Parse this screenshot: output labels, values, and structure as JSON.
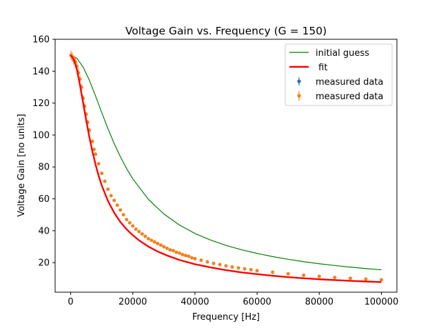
{
  "chart_data": {
    "type": "line",
    "title": "Voltage Gain vs. Frequency (G = 150)",
    "xlabel": "Frequency [Hz]",
    "ylabel": "Voltage Gain [no units]",
    "xlim": [
      -5000,
      105000
    ],
    "ylim": [
      1.5,
      160
    ],
    "xticks": [
      0,
      20000,
      40000,
      60000,
      80000,
      100000
    ],
    "xtick_labels": [
      "0",
      "20000",
      "40000",
      "60000",
      "80000",
      "100000"
    ],
    "yticks": [
      20,
      40,
      60,
      80,
      100,
      120,
      140,
      160
    ],
    "ytick_labels": [
      "20",
      "40",
      "60",
      "80",
      "100",
      "120",
      "140",
      "160"
    ],
    "grid": false,
    "legend_position": "top-right",
    "colors": {
      "initial_guess": "#008000",
      "fit": "#ff0000",
      "measured_1": "#1f77b4",
      "measured_2": "#ff7f0e"
    },
    "series": [
      {
        "name": "initial guess",
        "kind": "line",
        "x": [
          0,
          2000,
          4000,
          6000,
          8000,
          10000,
          12000,
          14000,
          16000,
          18000,
          20000,
          25000,
          30000,
          35000,
          40000,
          45000,
          50000,
          55000,
          60000,
          65000,
          70000,
          75000,
          80000,
          85000,
          90000,
          95000,
          100000
        ],
        "values": [
          150,
          148.1,
          142.6,
          134.4,
          124.5,
          114.1,
          104,
          94.7,
          86.4,
          79,
          72.5,
          59.7,
          50.5,
          43.6,
          38.3,
          34.2,
          30.8,
          28.1,
          25.8,
          23.8,
          22.1,
          20.6,
          19.3,
          18.2,
          17.2,
          16.3,
          15.5
        ]
      },
      {
        "name": " fit",
        "kind": "line",
        "x": [
          0,
          1000,
          2000,
          3000,
          4000,
          5000,
          6000,
          7000,
          8000,
          9000,
          10000,
          12000,
          14000,
          16000,
          18000,
          20000,
          22000,
          25000,
          28000,
          31000,
          35000,
          40000,
          45000,
          50000,
          55000,
          60000,
          65000,
          70000,
          75000,
          80000,
          85000,
          90000,
          95000,
          100000
        ],
        "values": [
          150,
          147.6,
          141,
          131.3,
          120.3,
          109.2,
          98.9,
          89.7,
          81.6,
          74.5,
          68.4,
          58.7,
          51.3,
          45.5,
          40.9,
          37.2,
          34.0,
          30.1,
          27.0,
          24.5,
          21.7,
          19.0,
          17.0,
          15.3,
          13.9,
          12.8,
          11.8,
          10.9,
          10.2,
          9.6,
          9.1,
          8.6,
          8.2,
          7.8
        ]
      },
      {
        "name": "measured data",
        "kind": "errorbar",
        "x": [
          100,
          500,
          1000,
          1500,
          2000,
          2500,
          3000,
          3500,
          4000,
          4500,
          5000,
          5500,
          6000,
          7000,
          7500,
          8000,
          9000,
          10000,
          11000,
          12000,
          13000,
          14000,
          15000,
          16000,
          17000,
          18000,
          19000,
          20000,
          21000,
          22000,
          23000,
          24000,
          25000,
          26000,
          27000,
          28000,
          29000,
          30000,
          31000,
          32000,
          33000,
          34000,
          35000,
          36000,
          37000,
          38000,
          39000,
          40000,
          42000,
          44000,
          46000,
          48000,
          50000,
          52000,
          54000,
          56000,
          58000,
          60000,
          65000,
          70000,
          75000,
          80000,
          85000,
          90000,
          95000,
          100000
        ],
        "values": [
          150,
          149,
          147,
          146,
          143,
          139,
          135,
          130,
          123,
          118,
          113,
          108,
          103,
          96,
          91,
          88,
          82,
          76,
          71,
          66,
          62,
          59,
          56,
          53,
          50,
          47,
          45,
          43,
          41,
          39.5,
          38,
          36.5,
          35,
          34,
          33,
          32,
          31,
          30,
          29,
          28,
          27.5,
          26.5,
          26,
          25,
          24.5,
          24,
          23,
          22.5,
          21.5,
          20.5,
          19.5,
          18.8,
          18,
          17.3,
          16.7,
          16.1,
          15.6,
          15,
          14,
          13,
          12.1,
          11.4,
          10.7,
          10.2,
          9.7,
          9.2
        ],
        "error": [
          2,
          2,
          2,
          2,
          2,
          2,
          1.5,
          1.5,
          1.5,
          1.5,
          1.2,
          1.2,
          1.2,
          1,
          1,
          1,
          1,
          0.8,
          0.8,
          0.8,
          0.7,
          0.7,
          0.6,
          0.6,
          0.6,
          0.5,
          0.5,
          0.5,
          0.5,
          0.5,
          0.4,
          0.4,
          0.4,
          0.4,
          0.4,
          0.4,
          0.3,
          0.3,
          0.3,
          0.3,
          0.3,
          0.3,
          0.3,
          0.3,
          0.3,
          0.3,
          0.3,
          0.3,
          0.3,
          0.3,
          0.3,
          0.3,
          0.3,
          0.3,
          0.3,
          0.3,
          0.3,
          0.3,
          0.3,
          0.3,
          0.3,
          0.3,
          0.3,
          0.3,
          0.3,
          0.3
        ]
      },
      {
        "name": "measured data",
        "kind": "errorbar",
        "x": [
          100,
          500,
          1000,
          1500,
          2000,
          2500,
          3000,
          3500,
          4000,
          4500,
          5000,
          5500,
          6000,
          7000,
          7500,
          8000,
          9000,
          10000,
          11000,
          12000,
          13000,
          14000,
          15000,
          16000,
          17000,
          18000,
          19000,
          20000,
          21000,
          22000,
          23000,
          24000,
          25000,
          26000,
          27000,
          28000,
          29000,
          30000,
          31000,
          32000,
          33000,
          34000,
          35000,
          36000,
          37000,
          38000,
          39000,
          40000,
          42000,
          44000,
          46000,
          48000,
          50000,
          52000,
          54000,
          56000,
          58000,
          60000,
          65000,
          70000,
          75000,
          80000,
          85000,
          90000,
          95000,
          100000
        ],
        "values": [
          150,
          149,
          147,
          146,
          143,
          139,
          135,
          130,
          123,
          118,
          113,
          108,
          103,
          96,
          91,
          88,
          82,
          76,
          71,
          66,
          62,
          59,
          56,
          53,
          50,
          47,
          45,
          43,
          41,
          39.5,
          38,
          36.5,
          35,
          34,
          33,
          32,
          31,
          30,
          29,
          28,
          27.5,
          26.5,
          26,
          25,
          24.5,
          24,
          23,
          22.5,
          21.5,
          20.5,
          19.5,
          18.8,
          18,
          17.3,
          16.7,
          16.1,
          15.6,
          15,
          14,
          13,
          12.1,
          11.4,
          10.7,
          10.2,
          9.7,
          9.2
        ],
        "error": [
          3,
          3,
          3,
          3,
          3,
          3,
          2,
          2,
          2,
          2,
          1.5,
          1.5,
          1.5,
          1.2,
          1.2,
          1.2,
          1,
          1,
          1,
          1,
          0.8,
          0.8,
          0.7,
          0.7,
          0.7,
          0.6,
          0.6,
          0.6,
          0.6,
          0.5,
          0.5,
          0.5,
          0.5,
          0.5,
          0.5,
          0.5,
          0.4,
          0.4,
          0.4,
          0.4,
          0.4,
          0.4,
          0.4,
          0.4,
          0.4,
          0.4,
          0.4,
          0.4,
          0.4,
          0.4,
          0.4,
          0.4,
          0.4,
          0.4,
          0.4,
          0.4,
          0.4,
          0.4,
          0.4,
          0.4,
          0.4,
          0.4,
          0.4,
          0.4,
          0.4,
          0.4
        ]
      }
    ]
  }
}
